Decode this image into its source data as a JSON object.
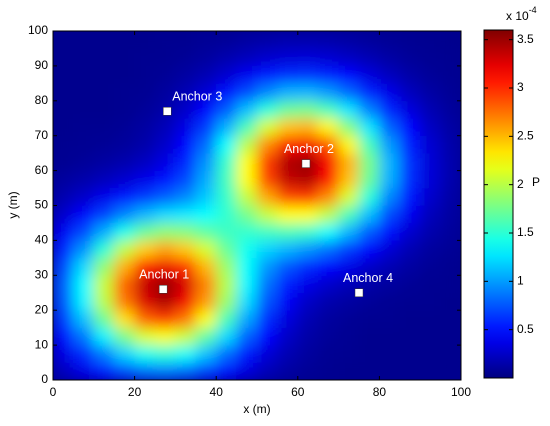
{
  "chart_data": {
    "type": "heatmap",
    "xlabel": "x (m)",
    "ylabel": "y (m)",
    "xlim": [
      0,
      100
    ],
    "ylim": [
      0,
      100
    ],
    "xticks": [
      0,
      20,
      40,
      60,
      80,
      100
    ],
    "yticks": [
      0,
      10,
      20,
      30,
      40,
      50,
      60,
      70,
      80,
      90,
      100
    ],
    "colormap": "jet",
    "clim": [
      0,
      3.6
    ],
    "cticks": [
      0.5,
      1,
      1.5,
      2,
      2.5,
      3,
      3.5
    ],
    "colorbar_label": "P",
    "colorbar_multiplier": "x 10",
    "colorbar_exponent": "-4",
    "x": [
      2.5,
      7.5,
      12.5,
      17.5,
      22.5,
      27.5,
      32.5,
      37.5,
      42.5,
      47.5,
      52.5,
      57.5,
      62.5,
      67.5,
      72.5,
      77.5,
      82.5,
      87.5,
      92.5,
      97.5
    ],
    "y": [
      2.5,
      7.5,
      12.5,
      17.5,
      22.5,
      27.5,
      32.5,
      37.5,
      42.5,
      47.5,
      52.5,
      57.5,
      62.5,
      67.5,
      72.5,
      77.5,
      82.5,
      87.5,
      92.5,
      97.5
    ],
    "z": [
      [
        0.22,
        0.36,
        0.53,
        0.71,
        0.84,
        0.88,
        0.82,
        0.67,
        0.49,
        0.33,
        0.2,
        0.12,
        0.08,
        0.06,
        0.05,
        0.05,
        0.05,
        0.05,
        0.05,
        0.05
      ],
      [
        0.35,
        0.58,
        0.88,
        1.19,
        1.41,
        1.49,
        1.38,
        1.13,
        0.82,
        0.53,
        0.31,
        0.18,
        0.11,
        0.07,
        0.06,
        0.05,
        0.05,
        0.05,
        0.05,
        0.05
      ],
      [
        0.51,
        0.86,
        1.31,
        1.77,
        2.12,
        2.23,
        2.06,
        1.68,
        1.22,
        0.78,
        0.45,
        0.25,
        0.14,
        0.09,
        0.07,
        0.05,
        0.05,
        0.05,
        0.05,
        0.05
      ],
      [
        0.66,
        1.13,
        1.73,
        2.35,
        2.8,
        2.95,
        2.73,
        2.23,
        1.61,
        1.04,
        0.6,
        0.33,
        0.18,
        0.11,
        0.08,
        0.06,
        0.06,
        0.05,
        0.05,
        0.05
      ],
      [
        0.76,
        1.31,
        2.01,
        2.73,
        3.27,
        3.44,
        3.19,
        2.61,
        1.9,
        1.23,
        0.74,
        0.42,
        0.25,
        0.16,
        0.12,
        0.09,
        0.07,
        0.06,
        0.06,
        0.05
      ],
      [
        0.78,
        1.34,
        2.06,
        2.8,
        3.35,
        3.54,
        3.29,
        2.7,
        1.99,
        1.33,
        0.85,
        0.54,
        0.37,
        0.27,
        0.2,
        0.14,
        0.11,
        0.08,
        0.06,
        0.06
      ],
      [
        0.71,
        1.22,
        1.86,
        2.53,
        3.04,
        3.21,
        3.0,
        2.5,
        1.9,
        1.36,
        0.98,
        0.74,
        0.59,
        0.47,
        0.37,
        0.26,
        0.18,
        0.12,
        0.08,
        0.06
      ],
      [
        0.57,
        0.97,
        1.49,
        2.02,
        2.42,
        2.58,
        2.44,
        2.11,
        1.72,
        1.4,
        1.2,
        1.08,
        0.97,
        0.83,
        0.65,
        0.46,
        0.3,
        0.18,
        0.11,
        0.08
      ],
      [
        0.41,
        0.69,
        1.05,
        1.42,
        1.71,
        1.85,
        1.82,
        1.68,
        1.56,
        1.52,
        1.56,
        1.6,
        1.54,
        1.36,
        1.08,
        0.76,
        0.48,
        0.28,
        0.16,
        0.1
      ],
      [
        0.27,
        0.44,
        0.66,
        0.9,
        1.09,
        1.22,
        1.28,
        1.35,
        1.51,
        1.76,
        2.05,
        2.25,
        2.25,
        2.02,
        1.6,
        1.12,
        0.7,
        0.4,
        0.21,
        0.12
      ],
      [
        0.17,
        0.26,
        0.38,
        0.52,
        0.65,
        0.77,
        0.92,
        1.16,
        1.54,
        2.04,
        2.56,
        2.91,
        2.96,
        2.66,
        2.11,
        1.48,
        0.92,
        0.52,
        0.27,
        0.14
      ],
      [
        0.11,
        0.15,
        0.21,
        0.28,
        0.37,
        0.5,
        0.7,
        1.05,
        1.58,
        2.25,
        2.91,
        3.36,
        3.43,
        3.09,
        2.46,
        1.72,
        1.07,
        0.6,
        0.31,
        0.16
      ],
      [
        0.07,
        0.09,
        0.12,
        0.16,
        0.23,
        0.35,
        0.57,
        0.96,
        1.53,
        2.25,
        2.95,
        3.43,
        3.51,
        3.17,
        2.52,
        1.76,
        1.09,
        0.61,
        0.31,
        0.16
      ],
      [
        0.06,
        0.07,
        0.08,
        0.1,
        0.15,
        0.26,
        0.47,
        0.82,
        1.36,
        2.01,
        2.66,
        3.09,
        3.17,
        2.86,
        2.27,
        1.59,
        0.99,
        0.56,
        0.29,
        0.15
      ],
      [
        0.05,
        0.06,
        0.06,
        0.08,
        0.12,
        0.2,
        0.36,
        0.65,
        1.07,
        1.6,
        2.11,
        2.46,
        2.52,
        2.27,
        1.81,
        1.27,
        0.79,
        0.45,
        0.24,
        0.13
      ],
      [
        0.05,
        0.05,
        0.05,
        0.06,
        0.09,
        0.14,
        0.26,
        0.46,
        0.76,
        1.12,
        1.48,
        1.72,
        1.76,
        1.59,
        1.27,
        0.9,
        0.57,
        0.33,
        0.18,
        0.1
      ],
      [
        0.05,
        0.05,
        0.05,
        0.06,
        0.07,
        0.11,
        0.18,
        0.3,
        0.48,
        0.7,
        0.92,
        1.07,
        1.09,
        0.99,
        0.8,
        0.57,
        0.37,
        0.22,
        0.13,
        0.08
      ],
      [
        0.05,
        0.05,
        0.05,
        0.05,
        0.06,
        0.08,
        0.12,
        0.18,
        0.28,
        0.4,
        0.52,
        0.6,
        0.61,
        0.56,
        0.45,
        0.33,
        0.22,
        0.14,
        0.09,
        0.07
      ],
      [
        0.05,
        0.05,
        0.05,
        0.05,
        0.06,
        0.06,
        0.08,
        0.11,
        0.16,
        0.21,
        0.27,
        0.3,
        0.31,
        0.29,
        0.24,
        0.18,
        0.13,
        0.09,
        0.07,
        0.06
      ],
      [
        0.05,
        0.05,
        0.05,
        0.05,
        0.05,
        0.06,
        0.06,
        0.08,
        0.09,
        0.12,
        0.14,
        0.16,
        0.16,
        0.15,
        0.13,
        0.1,
        0.08,
        0.07,
        0.06,
        0.05
      ]
    ],
    "points": [
      {
        "label": "Anchor 1",
        "x": 27,
        "y": 26
      },
      {
        "label": "Anchor 2",
        "x": 62,
        "y": 62
      },
      {
        "label": "Anchor 3",
        "x": 28,
        "y": 77
      },
      {
        "label": "Anchor 4",
        "x": 75,
        "y": 25
      }
    ],
    "point_color": "#ffffff"
  }
}
